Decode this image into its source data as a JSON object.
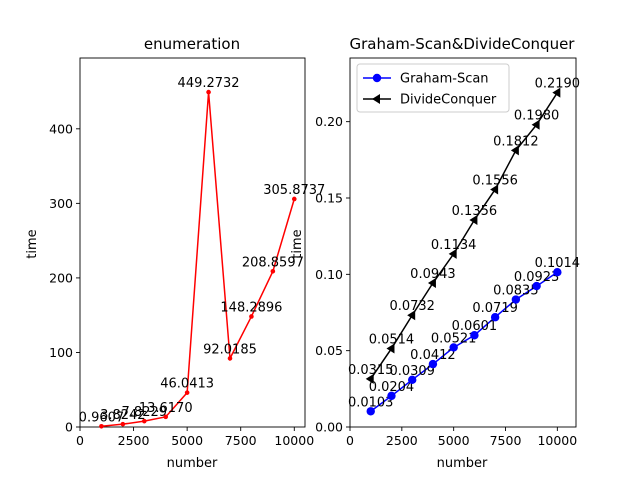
{
  "chart_data": [
    {
      "type": "line",
      "title": "enumeration",
      "xlabel": "number",
      "ylabel": "time",
      "xlim": [
        0,
        10500
      ],
      "ylim": [
        0,
        495
      ],
      "xticks": [
        0,
        2500,
        5000,
        7500,
        10000
      ],
      "yticks": [
        0,
        100,
        200,
        300,
        400
      ],
      "grid": false,
      "series": [
        {
          "color": "#ff0000",
          "marker": "point",
          "x": [
            1000,
            2000,
            3000,
            4000,
            5000,
            6000,
            7000,
            8000,
            9000,
            10000
          ],
          "y": [
            0.9607,
            3.8242,
            7.8229,
            13.617,
            46.0413,
            449.2732,
            92.0185,
            148.2896,
            208.8597,
            305.8737
          ],
          "labels": [
            "0.9607",
            "3.8242",
            "7.8229",
            "13.6170",
            "46.0413",
            "449.2732",
            "92.0185",
            "148.2896",
            "208.8597",
            "305.8737"
          ]
        }
      ]
    },
    {
      "type": "line",
      "title": "Graham-Scan&DivideConquer",
      "xlabel": "number",
      "ylabel": "time",
      "xlim": [
        0,
        10900
      ],
      "ylim": [
        0,
        0.2417
      ],
      "xticks": [
        0,
        2500,
        5000,
        7500,
        10000
      ],
      "yticks": [
        0.0,
        0.05,
        0.1,
        0.15,
        0.2
      ],
      "ytick_labels": [
        "0.00",
        "0.05",
        "0.10",
        "0.15",
        "0.20"
      ],
      "grid": false,
      "legend": "top-left",
      "series": [
        {
          "name": "Graham-Scan",
          "color": "#0000ff",
          "marker": "circle",
          "x": [
            1000,
            2000,
            3000,
            4000,
            5000,
            6000,
            7000,
            8000,
            9000,
            10000
          ],
          "y": [
            0.0103,
            0.0204,
            0.0309,
            0.0412,
            0.0521,
            0.0601,
            0.0719,
            0.0835,
            0.0923,
            0.1014
          ],
          "labels": [
            "0.0103",
            "0.0204",
            "0.0309",
            "0.0412",
            "0.0521",
            "0.0601",
            "0.0719",
            "0.0835",
            "0.0923",
            "0.1014"
          ]
        },
        {
          "name": "DivideConquer",
          "color": "#000000",
          "marker": "triangle-left",
          "x": [
            1000,
            2000,
            3000,
            4000,
            5000,
            6000,
            7000,
            8000,
            9000,
            10000
          ],
          "y": [
            0.0315,
            0.0514,
            0.0732,
            0.0943,
            0.1134,
            0.1356,
            0.1556,
            0.1812,
            0.198,
            0.219
          ],
          "labels": [
            "0.0315",
            "0.0514",
            "0.0732",
            "0.0943",
            "0.1134",
            "0.1356",
            "0.1556",
            "0.1812",
            "0.1980",
            "0.2190"
          ]
        }
      ]
    }
  ]
}
